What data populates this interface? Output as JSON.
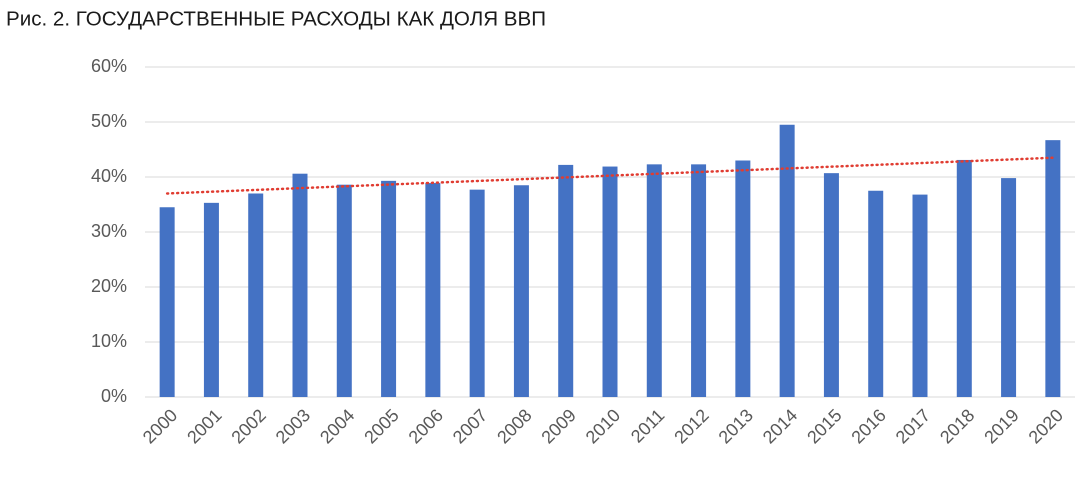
{
  "chart_data": {
    "type": "bar",
    "title": "Рис. 2. ГОСУДАРСТВЕННЫЕ РАСХОДЫ КАК ДОЛЯ ВВП",
    "categories": [
      "2000",
      "2001",
      "2002",
      "2003",
      "2004",
      "2005",
      "2006",
      "2007",
      "2008",
      "2009",
      "2010",
      "2011",
      "2012",
      "2013",
      "2014",
      "2015",
      "2016",
      "2017",
      "2018",
      "2019",
      "2020"
    ],
    "values": [
      34.5,
      35.3,
      37,
      40.6,
      38.6,
      39.3,
      38.9,
      37.7,
      38.5,
      42.2,
      41.9,
      42.3,
      42.3,
      43,
      49.5,
      40.7,
      37.5,
      36.8,
      43.1,
      39.8,
      46.7
    ],
    "color": "#4472c4",
    "trendline": {
      "start": 37,
      "end": 43.5,
      "color": "#e03c31"
    },
    "ylim": [
      0,
      60
    ],
    "yticks": [
      {
        "value": 0,
        "label": "0%"
      },
      {
        "value": 10,
        "label": "10%"
      },
      {
        "value": 20,
        "label": "20%"
      },
      {
        "value": 30,
        "label": "30%"
      },
      {
        "value": 40,
        "label": "40%"
      },
      {
        "value": 50,
        "label": "50%"
      },
      {
        "value": 60,
        "label": "60%"
      }
    ],
    "grid": true
  }
}
